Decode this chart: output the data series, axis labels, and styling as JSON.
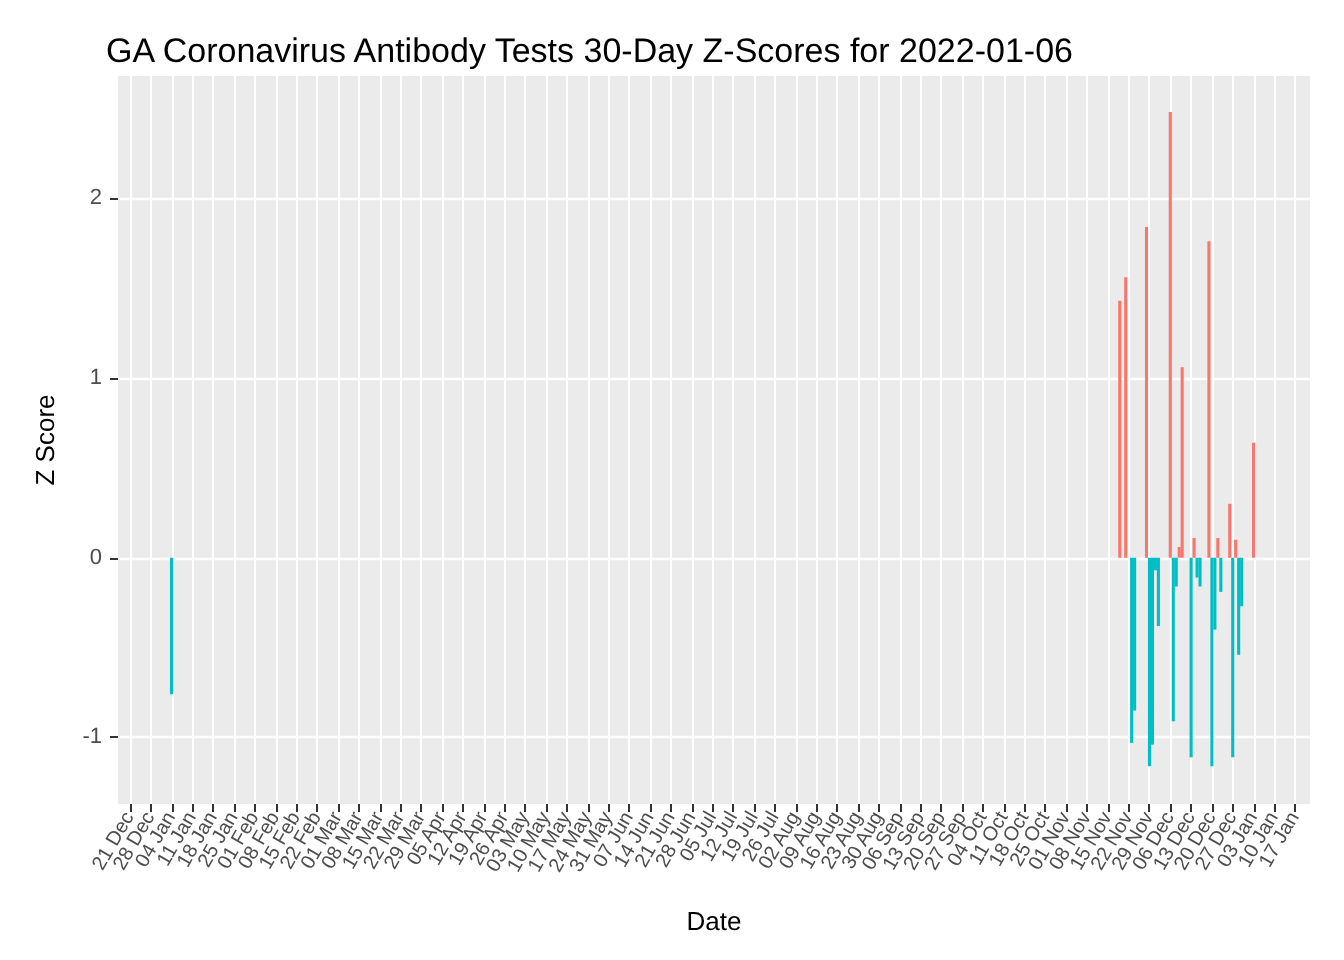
{
  "chart_data": {
    "type": "bar",
    "title": "GA Coronavirus Antibody Tests 30-Day Z-Scores for 2022-01-06",
    "xlabel": "Date",
    "ylabel": "Z Score",
    "x": [
      "2021-01-04",
      "2021-11-19",
      "2021-11-21",
      "2021-11-23",
      "2021-11-24",
      "2021-11-28",
      "2021-11-29",
      "2021-11-30",
      "2021-12-01",
      "2021-12-02",
      "2021-12-06",
      "2021-12-07",
      "2021-12-08",
      "2021-12-09",
      "2021-12-10",
      "2021-12-13",
      "2021-12-14",
      "2021-12-15",
      "2021-12-16",
      "2021-12-19",
      "2021-12-20",
      "2021-12-21",
      "2021-12-22",
      "2021-12-23",
      "2021-12-26",
      "2021-12-27",
      "2021-12-28",
      "2021-12-29",
      "2021-12-30",
      "2022-01-03"
    ],
    "values": [
      -0.76,
      1.43,
      1.56,
      -1.03,
      -0.85,
      1.84,
      -1.16,
      -1.04,
      -0.07,
      -0.38,
      2.48,
      -0.91,
      -0.16,
      0.06,
      1.06,
      -1.11,
      0.11,
      -0.11,
      -0.16,
      1.76,
      -1.16,
      -0.4,
      0.11,
      -0.19,
      0.3,
      -1.11,
      0.1,
      -0.54,
      -0.27,
      0.64
    ],
    "colors": [
      "#00bfc4",
      "#f8766d",
      "#f8766d",
      "#00bfc4",
      "#00bfc4",
      "#f8766d",
      "#00bfc4",
      "#00bfc4",
      "#00bfc4",
      "#00bfc4",
      "#f8766d",
      "#00bfc4",
      "#00bfc4",
      "#f8766d",
      "#f8766d",
      "#00bfc4",
      "#f8766d",
      "#00bfc4",
      "#00bfc4",
      "#f8766d",
      "#00bfc4",
      "#00bfc4",
      "#f8766d",
      "#00bfc4",
      "#f8766d",
      "#00bfc4",
      "#f8766d",
      "#00bfc4",
      "#00bfc4",
      "#f8766d"
    ],
    "xlim": [
      "2020-12-17",
      "2022-01-22"
    ],
    "ylim": [
      -1.37,
      2.68
    ],
    "yticks": [
      -1,
      0,
      1,
      2
    ],
    "xticks": [
      {
        "value": "2020-12-21",
        "label": "21 Dec"
      },
      {
        "value": "2020-12-28",
        "label": "28 Dec"
      },
      {
        "value": "2021-01-04",
        "label": "04 Jan"
      },
      {
        "value": "2021-01-11",
        "label": "11 Jan"
      },
      {
        "value": "2021-01-18",
        "label": "18 Jan"
      },
      {
        "value": "2021-01-25",
        "label": "25 Jan"
      },
      {
        "value": "2021-02-01",
        "label": "01 Feb"
      },
      {
        "value": "2021-02-08",
        "label": "08 Feb"
      },
      {
        "value": "2021-02-15",
        "label": "15 Feb"
      },
      {
        "value": "2021-02-22",
        "label": "22 Feb"
      },
      {
        "value": "2021-03-01",
        "label": "01 Mar"
      },
      {
        "value": "2021-03-08",
        "label": "08 Mar"
      },
      {
        "value": "2021-03-15",
        "label": "15 Mar"
      },
      {
        "value": "2021-03-22",
        "label": "22 Mar"
      },
      {
        "value": "2021-03-29",
        "label": "29 Mar"
      },
      {
        "value": "2021-04-05",
        "label": "05 Apr"
      },
      {
        "value": "2021-04-12",
        "label": "12 Apr"
      },
      {
        "value": "2021-04-19",
        "label": "19 Apr"
      },
      {
        "value": "2021-04-26",
        "label": "26 Apr"
      },
      {
        "value": "2021-05-03",
        "label": "03 May"
      },
      {
        "value": "2021-05-10",
        "label": "10 May"
      },
      {
        "value": "2021-05-17",
        "label": "17 May"
      },
      {
        "value": "2021-05-24",
        "label": "24 May"
      },
      {
        "value": "2021-05-31",
        "label": "31 May"
      },
      {
        "value": "2021-06-07",
        "label": "07 Jun"
      },
      {
        "value": "2021-06-14",
        "label": "14 Jun"
      },
      {
        "value": "2021-06-21",
        "label": "21 Jun"
      },
      {
        "value": "2021-06-28",
        "label": "28 Jun"
      },
      {
        "value": "2021-07-05",
        "label": "05 Jul"
      },
      {
        "value": "2021-07-12",
        "label": "12 Jul"
      },
      {
        "value": "2021-07-19",
        "label": "19 Jul"
      },
      {
        "value": "2021-07-26",
        "label": "26 Jul"
      },
      {
        "value": "2021-08-02",
        "label": "02 Aug"
      },
      {
        "value": "2021-08-09",
        "label": "09 Aug"
      },
      {
        "value": "2021-08-16",
        "label": "16 Aug"
      },
      {
        "value": "2021-08-23",
        "label": "23 Aug"
      },
      {
        "value": "2021-08-30",
        "label": "30 Aug"
      },
      {
        "value": "2021-09-06",
        "label": "06 Sep"
      },
      {
        "value": "2021-09-13",
        "label": "13 Sep"
      },
      {
        "value": "2021-09-20",
        "label": "20 Sep"
      },
      {
        "value": "2021-09-27",
        "label": "27 Sep"
      },
      {
        "value": "2021-10-04",
        "label": "04 Oct"
      },
      {
        "value": "2021-10-11",
        "label": "11 Oct"
      },
      {
        "value": "2021-10-18",
        "label": "18 Oct"
      },
      {
        "value": "2021-10-25",
        "label": "25 Oct"
      },
      {
        "value": "2021-11-01",
        "label": "01 Nov"
      },
      {
        "value": "2021-11-08",
        "label": "08 Nov"
      },
      {
        "value": "2021-11-15",
        "label": "15 Nov"
      },
      {
        "value": "2021-11-22",
        "label": "22 Nov"
      },
      {
        "value": "2021-11-29",
        "label": "29 Nov"
      },
      {
        "value": "2021-12-06",
        "label": "06 Dec"
      },
      {
        "value": "2021-12-13",
        "label": "13 Dec"
      },
      {
        "value": "2021-12-20",
        "label": "20 Dec"
      },
      {
        "value": "2021-12-27",
        "label": "27 Dec"
      },
      {
        "value": "2022-01-03",
        "label": "03 Jan"
      },
      {
        "value": "2022-01-10",
        "label": "10 Jan"
      },
      {
        "value": "2022-01-17",
        "label": "17 Jan"
      }
    ],
    "grid": true
  }
}
